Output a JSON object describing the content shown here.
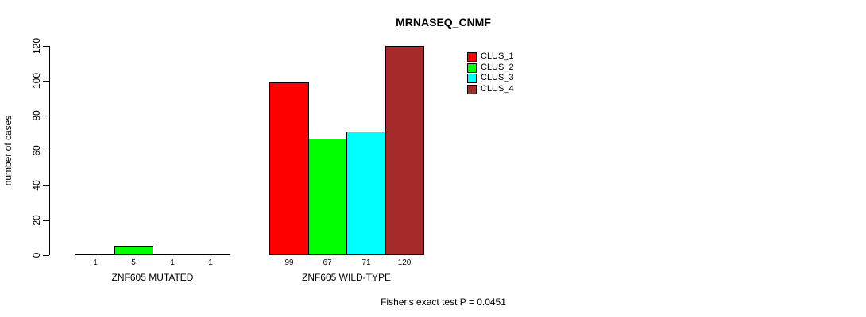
{
  "chart_data": {
    "type": "bar",
    "title": "MRNASEQ_CNMF",
    "ylabel": "number of cases",
    "ylim": [
      0,
      120
    ],
    "yticks": [
      0,
      20,
      40,
      60,
      80,
      100,
      120
    ],
    "grid": false,
    "legend_position": "top-right",
    "categories": [
      "ZNF605 MUTATED",
      "ZNF605 WILD-TYPE"
    ],
    "groups": [
      {
        "label": "ZNF605 MUTATED",
        "values": [
          1,
          5,
          1,
          1
        ]
      },
      {
        "label": "ZNF605 WILD-TYPE",
        "values": [
          99,
          67,
          71,
          120
        ]
      }
    ],
    "series": [
      {
        "name": "CLUS_1",
        "color": "#FF0000"
      },
      {
        "name": "CLUS_2",
        "color": "#00FF00"
      },
      {
        "name": "CLUS_3",
        "color": "#00FFFF"
      },
      {
        "name": "CLUS_4",
        "color": "#A52A2A"
      }
    ],
    "value_labels": [
      [
        1,
        5,
        1,
        1
      ],
      [
        99,
        67,
        71,
        120
      ]
    ],
    "annotation": "Fisher's exact test P = 0.0451",
    "text_color": "#000000",
    "background_color": "#FFFFFF"
  }
}
